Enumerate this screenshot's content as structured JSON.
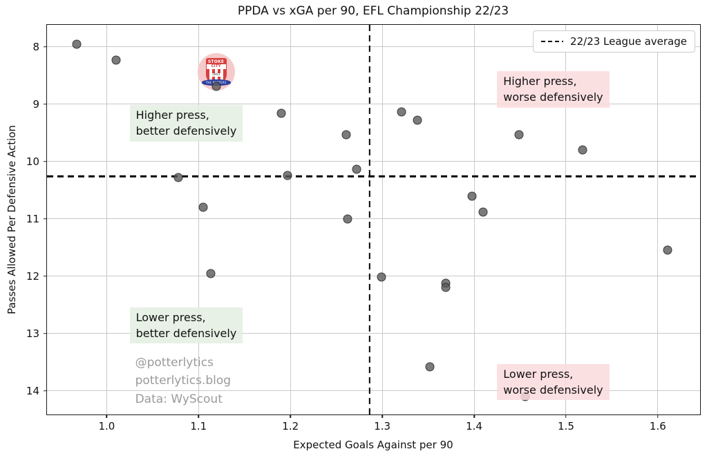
{
  "chart_data": {
    "type": "scatter",
    "title": "PPDA vs xGA per 90, EFL Championship 22/23",
    "xlabel": "Expected Goals Against per 90",
    "ylabel": "Passes Allowed Per Defensive Action",
    "xlim": [
      0.935,
      1.646
    ],
    "ylim": [
      7.62,
      14.41
    ],
    "y_axis_inverted": true,
    "grid": true,
    "x_ticks": [
      1.0,
      1.1,
      1.2,
      1.3,
      1.4,
      1.5,
      1.6
    ],
    "y_ticks": [
      8,
      9,
      10,
      11,
      12,
      13,
      14
    ],
    "points": [
      [
        0.967,
        7.96
      ],
      [
        1.01,
        8.24
      ],
      [
        1.119,
        8.69
      ],
      [
        1.19,
        9.16
      ],
      [
        1.261,
        9.54
      ],
      [
        1.272,
        10.14
      ],
      [
        1.078,
        10.28
      ],
      [
        1.197,
        10.24
      ],
      [
        1.105,
        10.8
      ],
      [
        1.262,
        11.0
      ],
      [
        1.321,
        9.14
      ],
      [
        1.338,
        9.28
      ],
      [
        1.449,
        9.53
      ],
      [
        1.518,
        9.8
      ],
      [
        1.398,
        10.6
      ],
      [
        1.41,
        10.88
      ],
      [
        1.113,
        11.95
      ],
      [
        1.299,
        12.02
      ],
      [
        1.369,
        12.12
      ],
      [
        1.369,
        12.2
      ],
      [
        1.352,
        13.58
      ],
      [
        1.456,
        14.1
      ],
      [
        1.611,
        11.54
      ]
    ],
    "highlight_team": {
      "name": "Stoke City",
      "point": [
        1.119,
        8.69
      ],
      "logo_center": [
        1.119,
        8.44
      ]
    },
    "league_average": {
      "xga": 1.286,
      "ppda": 10.26
    },
    "legend": {
      "label": "22/23 League average",
      "position": "upper right"
    },
    "annotations": [
      {
        "name": "higher-press-better",
        "text": "Higher press,\nbetter defensively",
        "x": 1.025,
        "y": 9.02,
        "theme": "green"
      },
      {
        "name": "lower-press-better",
        "text": "Lower press,\nbetter defensively",
        "x": 1.025,
        "y": 12.54,
        "theme": "green"
      },
      {
        "name": "higher-press-worse",
        "text": "Higher press,\nworse defensively",
        "x": 1.425,
        "y": 8.43,
        "theme": "pink"
      },
      {
        "name": "lower-press-worse",
        "text": "Lower press,\nworse defensively",
        "x": 1.425,
        "y": 13.53,
        "theme": "pink"
      }
    ],
    "watermark": {
      "lines": [
        "@potterlytics",
        "potterlytics.blog",
        "Data: WyScout"
      ],
      "x": 1.031,
      "y": 13.35
    }
  },
  "logo_text": {
    "club_top": "STOKE",
    "club_bottom": "CITY",
    "year": "1863",
    "banner": "THE POTTERS"
  },
  "colors": {
    "marker_fill": "#5a5a5a",
    "marker_edge": "#2d2d2d",
    "grid": "#c9c9c9",
    "green_box": "#e3efe0",
    "pink_box": "#fadadd",
    "watermark": "#9a9a9a",
    "logo_bg": "#f6caca",
    "logo_red": "#d84040",
    "logo_blue": "#2a3f9e",
    "dashed_line": "#000000"
  }
}
